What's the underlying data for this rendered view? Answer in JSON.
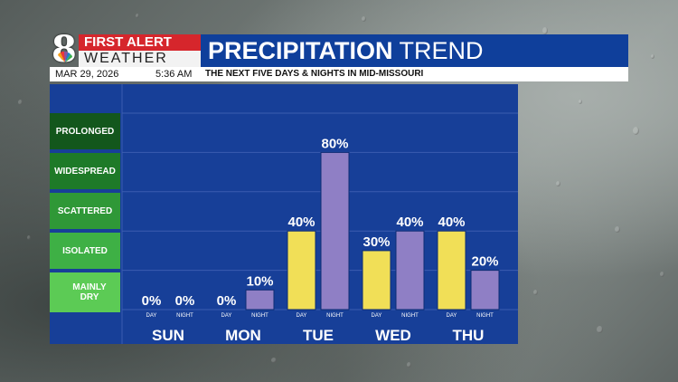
{
  "header": {
    "logo_number": "8",
    "logo_line1": "FIRST ALERT",
    "logo_line2": "WEATHER",
    "title_bold": "PRECIPITATION",
    "title_light": "TREND",
    "date": "MAR 29, 2026",
    "time": "5:36 AM",
    "subtitle": "THE NEXT FIVE DAYS & NIGHTS IN MID-MISSOURI"
  },
  "legend": {
    "levels": [
      {
        "label": "PROLONGED",
        "color": "#13571c"
      },
      {
        "label": "WIDESPREAD",
        "color": "#1e7a28"
      },
      {
        "label": "SCATTERED",
        "color": "#2f9837"
      },
      {
        "label": "ISOLATED",
        "color": "#3eb045"
      },
      {
        "label": "MAINLY DRY",
        "color": "#5ccb55"
      }
    ]
  },
  "colors": {
    "day": "#f1df57",
    "night": "#8f7fc5",
    "panel": "#173f98",
    "grid": "#3b5cb0"
  },
  "chart_data": {
    "type": "bar",
    "categories": [
      "SUN",
      "MON",
      "TUE",
      "WED",
      "THU"
    ],
    "period_labels": [
      "DAY",
      "NIGHT"
    ],
    "series": [
      {
        "name": "DAY",
        "values": [
          0,
          0,
          40,
          30,
          40
        ]
      },
      {
        "name": "NIGHT",
        "values": [
          0,
          10,
          80,
          40,
          20
        ]
      }
    ],
    "value_suffix": "%",
    "ylim": [
      0,
      100
    ],
    "grid": true
  }
}
